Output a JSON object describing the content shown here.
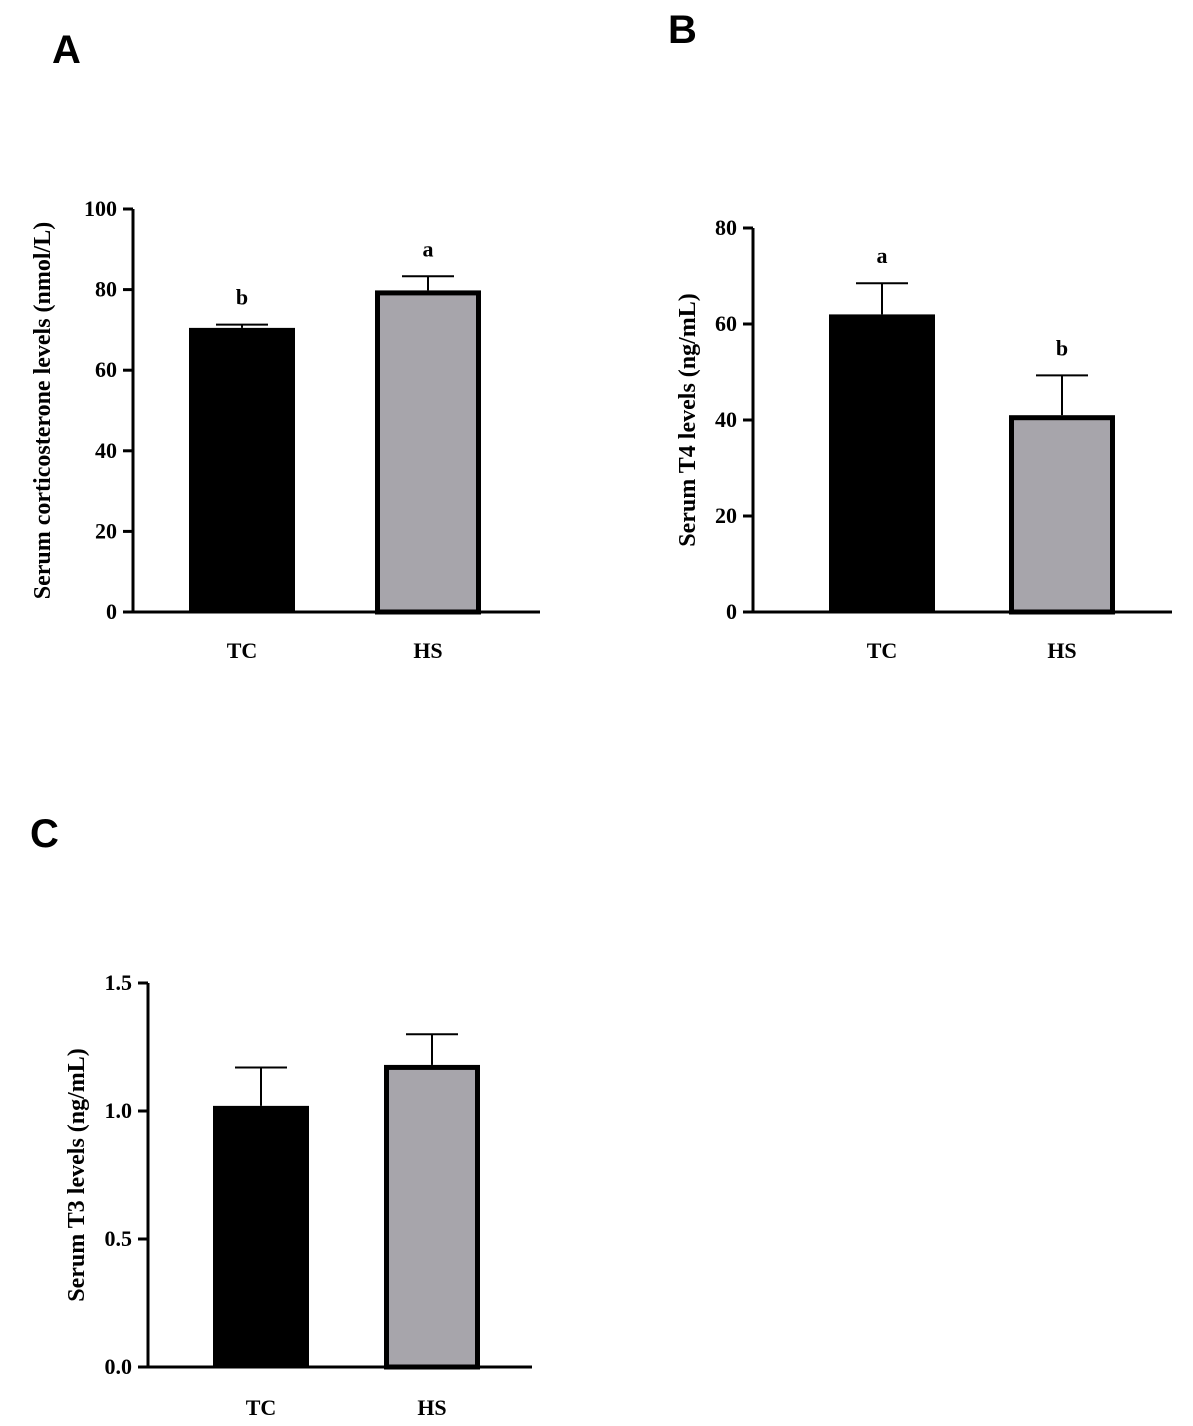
{
  "chart_data": [
    {
      "panel": "A",
      "type": "bar",
      "categories": [
        "TC",
        "HS"
      ],
      "values": [
        70.5,
        79.8
      ],
      "errors": [
        0.8,
        3.5
      ],
      "significance": [
        "b",
        "a"
      ],
      "colors": [
        "#000000",
        "#a7a5ab"
      ],
      "ylabel": "Serum corticosterone levels (nmol/L)",
      "xlabel": "",
      "ylim": [
        0,
        100
      ],
      "yticks": [
        0,
        20,
        40,
        60,
        80,
        100
      ],
      "ytick_labels": [
        "0",
        "20",
        "40",
        "60",
        "80",
        "100"
      ]
    },
    {
      "panel": "B",
      "type": "bar",
      "categories": [
        "TC",
        "HS"
      ],
      "values": [
        62,
        41
      ],
      "errors": [
        6.5,
        8.3
      ],
      "significance": [
        "a",
        "b"
      ],
      "colors": [
        "#000000",
        "#a7a5ab"
      ],
      "ylabel": "Serum T4 levels (ng/mL)",
      "xlabel": "",
      "ylim": [
        0,
        80
      ],
      "yticks": [
        0,
        20,
        40,
        60,
        80
      ],
      "ytick_labels": [
        "0",
        "20",
        "40",
        "60",
        "80"
      ]
    },
    {
      "panel": "C",
      "type": "bar",
      "categories": [
        "TC",
        "HS"
      ],
      "values": [
        1.02,
        1.18
      ],
      "errors": [
        0.15,
        0.12
      ],
      "significance": [
        "",
        ""
      ],
      "colors": [
        "#000000",
        "#a7a5ab"
      ],
      "ylabel": "Serum T3 levels (ng/mL)",
      "xlabel": "",
      "ylim": [
        0,
        1.5
      ],
      "yticks": [
        0,
        0.5,
        1.0,
        1.5
      ],
      "ytick_labels": [
        "0.0",
        "0.5",
        "1.0",
        "1.5"
      ]
    }
  ]
}
